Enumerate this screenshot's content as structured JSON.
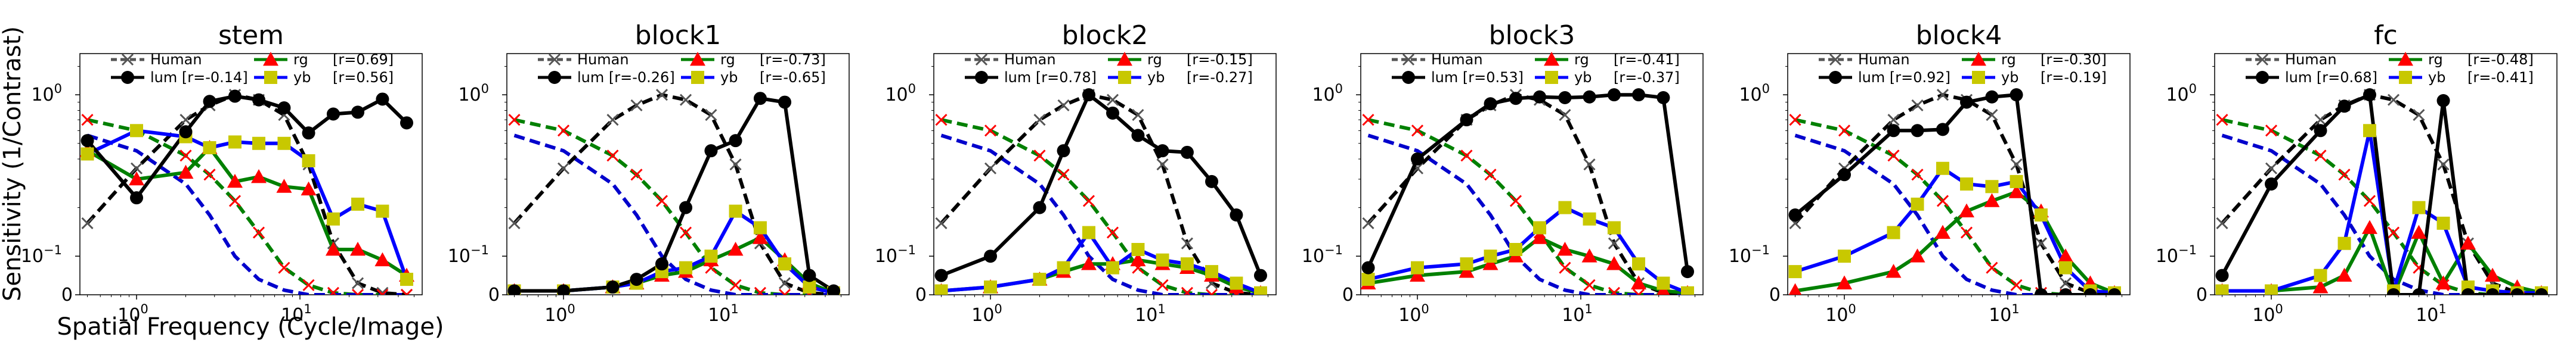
{
  "chart_data": {
    "type": "line",
    "xlabel": "Spatial Frequency (Cycle/Image)",
    "ylabel": "Sensitivity (1/Contrast)",
    "xscale": "log",
    "yscale": "symlog",
    "xlim": [
      0.45,
      56
    ],
    "ylim": [
      0,
      1.8
    ],
    "x_ticks": [
      {
        "value": 1,
        "base": "10",
        "exp": "0"
      },
      {
        "value": 10,
        "base": "10",
        "exp": "1"
      }
    ],
    "y_ticks": [
      {
        "value": 0,
        "text": "0"
      },
      {
        "value": 0.1,
        "base": "10",
        "exp": "−1"
      },
      {
        "value": 1,
        "base": "10",
        "exp": "0"
      }
    ],
    "legend_position": "top",
    "colors": {
      "human": "#555555",
      "lum": "#000000",
      "rg": "#ff0000",
      "yb": "#c8c800",
      "lum_dash": "#000000",
      "rg_dash": "#008000",
      "yb_dash": "#0000cc"
    },
    "x": [
      0.5,
      1,
      2,
      2.8,
      4,
      5.6,
      8,
      11.3,
      16,
      22.6,
      32,
      45
    ],
    "human_ref": {
      "lum": [
        0.16,
        0.35,
        0.7,
        0.86,
        1.0,
        0.93,
        0.75,
        0.37,
        0.12,
        0.03,
        0.005,
        0.0
      ],
      "rg": [
        0.7,
        0.6,
        0.42,
        0.32,
        0.22,
        0.14,
        0.07,
        0.025,
        0.005,
        0.0,
        0.0,
        0.0
      ],
      "yb": [
        0.56,
        0.45,
        0.28,
        0.18,
        0.1,
        0.04,
        0.012,
        0.0,
        0.0,
        0.0,
        0.0,
        0.0
      ]
    },
    "panels": [
      {
        "title": "stem",
        "legend": {
          "human": "Human",
          "lum": "lum [r=-0.14]",
          "rg": "rg",
          "rg_r": "[r=0.69]",
          "yb": "yb",
          "yb_r": "[r=0.56]"
        },
        "lum": [
          0.52,
          0.23,
          0.59,
          0.91,
          0.98,
          0.93,
          0.83,
          0.58,
          0.76,
          0.78,
          0.94,
          0.67
        ],
        "rg": [
          0.45,
          0.3,
          0.33,
          0.47,
          0.29,
          0.31,
          0.27,
          0.26,
          0.11,
          0.11,
          0.09,
          0.05
        ],
        "yb": [
          0.43,
          0.6,
          0.55,
          0.47,
          0.51,
          0.5,
          0.5,
          0.39,
          0.17,
          0.21,
          0.19,
          0.04
        ]
      },
      {
        "title": "block1",
        "legend": {
          "human": "Human",
          "lum": "lum [r=-0.26]",
          "rg": "rg",
          "rg_r": "[r=-0.73]",
          "yb": "yb",
          "yb_r": "[r=-0.65]"
        },
        "lum": [
          0.01,
          0.01,
          0.02,
          0.04,
          0.08,
          0.2,
          0.45,
          0.52,
          0.95,
          0.9,
          0.05,
          0.01
        ],
        "rg": [
          0.01,
          0.01,
          0.02,
          0.03,
          0.05,
          0.06,
          0.09,
          0.11,
          0.13,
          0.09,
          0.03,
          0.005
        ],
        "yb": [
          0.01,
          0.01,
          0.02,
          0.03,
          0.06,
          0.07,
          0.1,
          0.19,
          0.15,
          0.08,
          0.02,
          0.005
        ]
      },
      {
        "title": "block2",
        "legend": {
          "human": "Human",
          "lum": "lum [r=0.78]",
          "rg": "rg",
          "rg_r": "[r=-0.15]",
          "yb": "yb",
          "yb_r": "[r=-0.27]"
        },
        "lum": [
          0.05,
          0.1,
          0.2,
          0.45,
          1.0,
          0.77,
          0.56,
          0.45,
          0.44,
          0.29,
          0.18,
          0.05
        ],
        "rg": [
          0.01,
          0.02,
          0.04,
          0.06,
          0.08,
          0.08,
          0.09,
          0.08,
          0.07,
          0.05,
          0.02,
          0.005
        ],
        "yb": [
          0.01,
          0.02,
          0.04,
          0.07,
          0.14,
          0.07,
          0.11,
          0.09,
          0.08,
          0.06,
          0.03,
          0.005
        ]
      },
      {
        "title": "block3",
        "legend": {
          "human": "Human",
          "lum": "lum [r=0.53]",
          "rg": "rg",
          "rg_r": "[r=-0.41]",
          "yb": "yb",
          "yb_r": "[r=-0.37]"
        },
        "lum": [
          0.07,
          0.4,
          0.7,
          0.88,
          0.95,
          0.97,
          0.96,
          0.97,
          1.0,
          1.0,
          0.96,
          0.06
        ],
        "rg": [
          0.03,
          0.05,
          0.06,
          0.08,
          0.1,
          0.13,
          0.11,
          0.1,
          0.08,
          0.03,
          0.01,
          0.005
        ],
        "yb": [
          0.04,
          0.07,
          0.08,
          0.1,
          0.11,
          0.15,
          0.2,
          0.17,
          0.15,
          0.08,
          0.03,
          0.005
        ]
      },
      {
        "title": "block4",
        "legend": {
          "human": "Human",
          "lum": "lum [r=0.92]",
          "rg": "rg",
          "rg_r": "[r=-0.30]",
          "yb": "yb",
          "yb_r": "[r=-0.19]"
        },
        "lum": [
          0.18,
          0.32,
          0.6,
          0.6,
          0.61,
          0.9,
          0.97,
          1.0,
          0.0,
          0.0,
          0.0,
          0.0
        ],
        "rg": [
          0.01,
          0.03,
          0.06,
          0.1,
          0.14,
          0.19,
          0.22,
          0.25,
          0.19,
          0.1,
          0.03,
          0.005
        ],
        "yb": [
          0.06,
          0.1,
          0.14,
          0.21,
          0.35,
          0.28,
          0.27,
          0.29,
          0.18,
          0.07,
          0.01,
          0.005
        ]
      },
      {
        "title": "fc",
        "legend": {
          "human": "Human",
          "lum": "lum [r=0.68]",
          "rg": "rg",
          "rg_r": "[r=-0.48]",
          "yb": "yb",
          "yb_r": "[r=-0.41]"
        },
        "lum": [
          0.05,
          0.28,
          0.6,
          0.85,
          1.0,
          0.0,
          0.0,
          0.92,
          0.0,
          0.0,
          0.0,
          0.0
        ],
        "rg": [
          0.01,
          0.01,
          0.02,
          0.05,
          0.15,
          0.0,
          0.14,
          0.03,
          0.12,
          0.05,
          0.02,
          0.005
        ],
        "yb": [
          0.01,
          0.01,
          0.05,
          0.12,
          0.6,
          0.01,
          0.2,
          0.16,
          0.02,
          0.01,
          0.005,
          0.005
        ]
      }
    ]
  }
}
